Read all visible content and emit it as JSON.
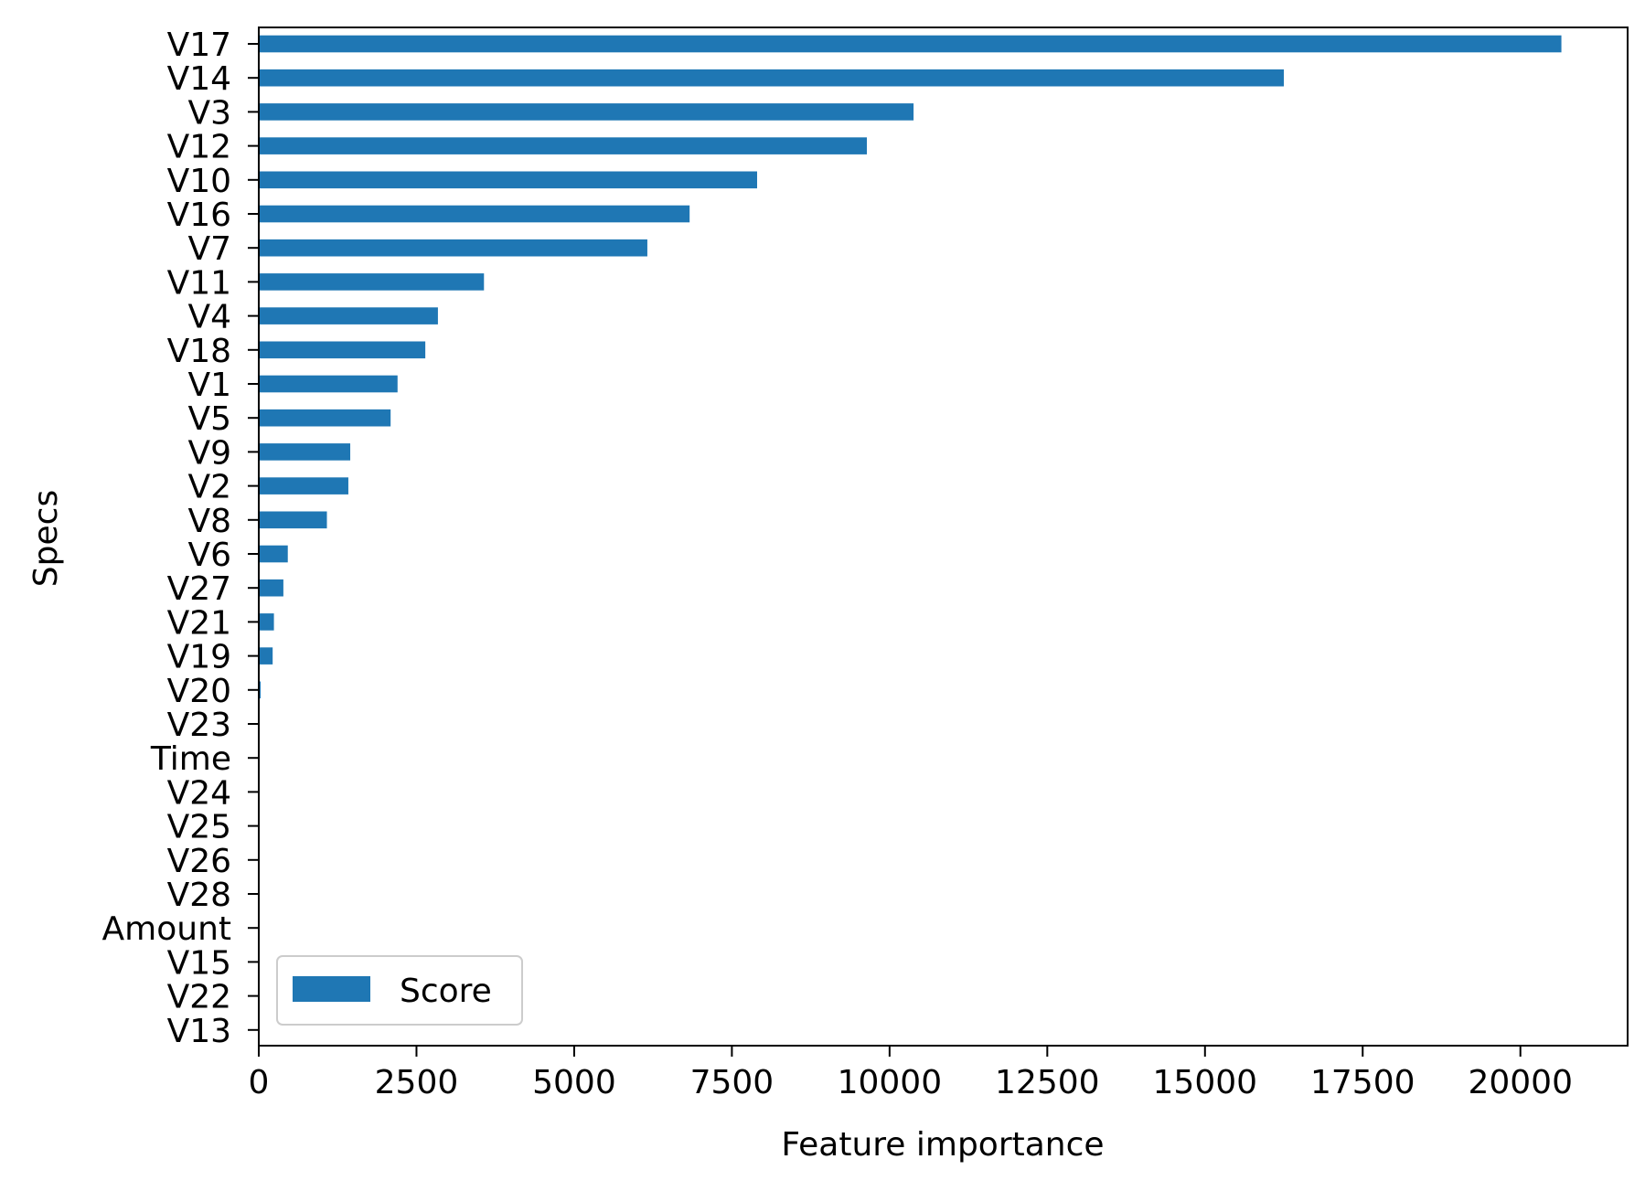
{
  "chart_data": {
    "type": "bar",
    "orientation": "horizontal",
    "categories": [
      "V17",
      "V14",
      "V3",
      "V12",
      "V10",
      "V16",
      "V7",
      "V11",
      "V4",
      "V18",
      "V1",
      "V5",
      "V9",
      "V2",
      "V8",
      "V6",
      "V27",
      "V21",
      "V19",
      "V20",
      "V23",
      "Time",
      "V24",
      "V25",
      "V26",
      "V28",
      "Amount",
      "V15",
      "V22",
      "V13"
    ],
    "series": [
      {
        "name": "Score",
        "color": "#1f77b4",
        "values": [
          20650,
          16250,
          10380,
          9640,
          7900,
          6830,
          6160,
          3570,
          2840,
          2640,
          2200,
          2090,
          1450,
          1420,
          1080,
          460,
          390,
          240,
          220,
          30,
          0,
          0,
          0,
          0,
          0,
          0,
          0,
          0,
          0,
          0
        ]
      }
    ],
    "title": "",
    "xlabel": "Feature importance",
    "ylabel": "Specs",
    "xlim": [
      0,
      21700
    ],
    "xticks": [
      0,
      2500,
      5000,
      7500,
      10000,
      12500,
      15000,
      17500,
      20000
    ],
    "xtick_labels": [
      "0",
      "2500",
      "5000",
      "7500",
      "10000",
      "12500",
      "15000",
      "17500",
      "20000"
    ],
    "grid": false,
    "legend": {
      "position": "lower-left",
      "entries": [
        "Score"
      ]
    }
  }
}
